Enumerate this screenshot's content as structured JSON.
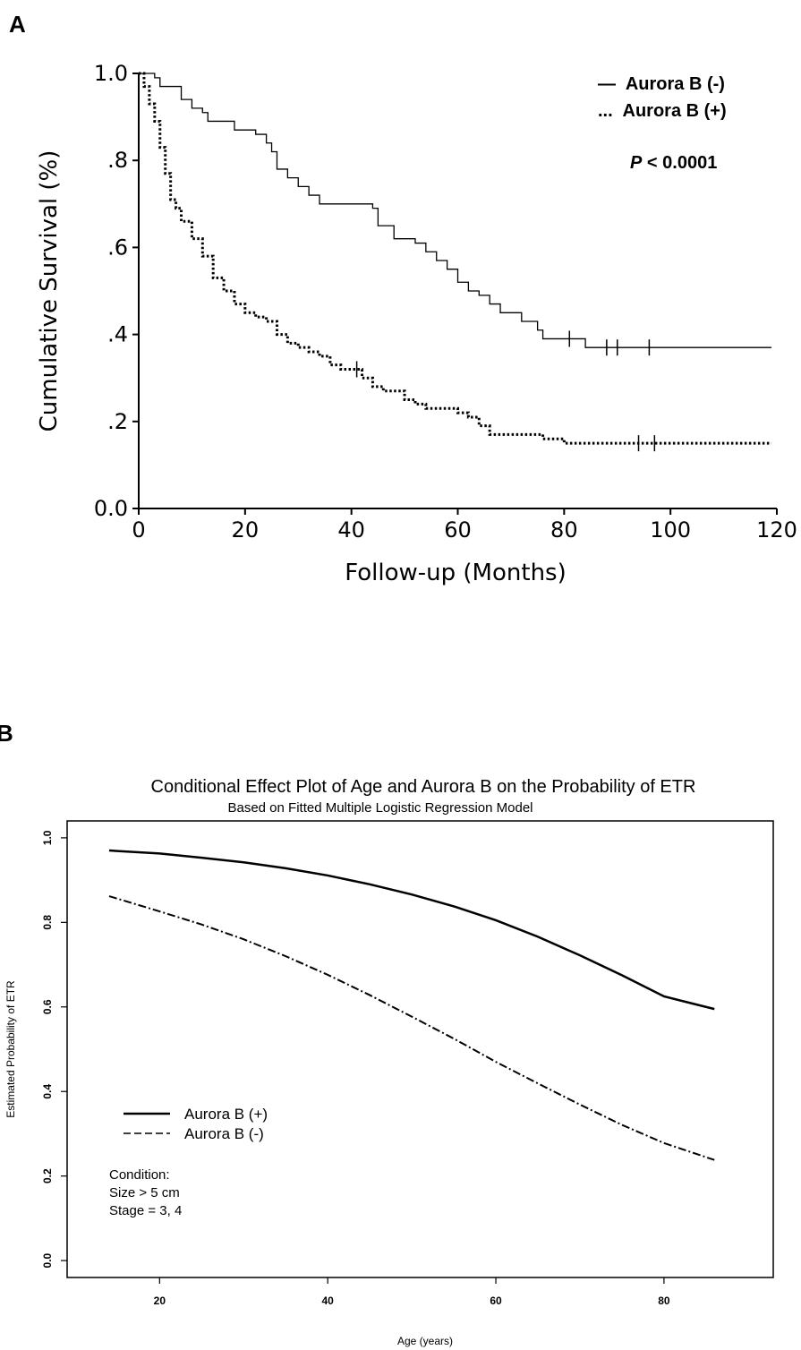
{
  "chart_data": [
    {
      "panel_label": "A",
      "type": "line",
      "subtype": "kaplan-meier",
      "xlabel": "Follow-up (Months)",
      "ylabel": "Cumulative Survival (%)",
      "xlim": [
        0,
        120
      ],
      "ylim": [
        0,
        1
      ],
      "x_ticks": [
        0,
        20,
        40,
        60,
        80,
        100,
        120
      ],
      "x_tick_labels": [
        "0",
        "20",
        "40",
        "60",
        "80",
        "100",
        "120"
      ],
      "y_ticks": [
        0,
        0.2,
        0.4,
        0.6,
        0.8,
        1.0
      ],
      "y_tick_labels": [
        "0.0",
        ".2",
        ".4",
        ".6",
        ".8",
        "1.0"
      ],
      "grid": false,
      "legend_position": "top-right",
      "annotation": {
        "p_symbol": "P",
        "p_rest": " < 0.0001"
      },
      "series": [
        {
          "name": "Aurora B (-)",
          "legend_symbol": "—",
          "style": "solid",
          "color": "#000000",
          "x": [
            0,
            3,
            4,
            8,
            10,
            12,
            13,
            18,
            22,
            24,
            25,
            26,
            28,
            30,
            32,
            34,
            44,
            45,
            48,
            52,
            54,
            56,
            58,
            60,
            62,
            64,
            66,
            68,
            72,
            75,
            76,
            84,
            119
          ],
          "y": [
            1.0,
            0.99,
            0.97,
            0.94,
            0.92,
            0.91,
            0.89,
            0.87,
            0.86,
            0.84,
            0.82,
            0.78,
            0.76,
            0.74,
            0.72,
            0.7,
            0.69,
            0.65,
            0.62,
            0.61,
            0.59,
            0.57,
            0.55,
            0.52,
            0.5,
            0.49,
            0.47,
            0.45,
            0.43,
            0.41,
            0.39,
            0.37,
            0.37
          ],
          "censored": [
            [
              81,
              0.39
            ],
            [
              88,
              0.37
            ],
            [
              90,
              0.37
            ],
            [
              96,
              0.37
            ]
          ]
        },
        {
          "name": "Aurora B (+)",
          "legend_symbol": "...",
          "style": "dotted",
          "color": "#000000",
          "x": [
            0,
            1,
            2,
            3,
            4,
            5,
            6,
            7,
            8,
            10,
            12,
            14,
            16,
            18,
            20,
            22,
            24,
            26,
            28,
            30,
            32,
            34,
            36,
            38,
            40,
            42,
            44,
            46,
            50,
            52,
            54,
            56,
            60,
            62,
            64,
            66,
            70,
            76,
            80,
            119
          ],
          "y": [
            1.0,
            0.97,
            0.93,
            0.89,
            0.83,
            0.77,
            0.71,
            0.69,
            0.66,
            0.62,
            0.58,
            0.53,
            0.5,
            0.47,
            0.45,
            0.44,
            0.43,
            0.4,
            0.38,
            0.37,
            0.36,
            0.35,
            0.33,
            0.32,
            0.32,
            0.3,
            0.28,
            0.27,
            0.25,
            0.24,
            0.23,
            0.23,
            0.22,
            0.21,
            0.19,
            0.17,
            0.17,
            0.16,
            0.15,
            0.15
          ],
          "censored": [
            [
              41,
              0.32
            ],
            [
              94,
              0.15
            ],
            [
              97,
              0.15
            ]
          ]
        }
      ]
    },
    {
      "panel_label": "B",
      "type": "line",
      "title": "Conditional Effect Plot of Age and Aurora B on the Probability of ETR",
      "subtitle": "Based on Fitted Multiple Logistic Regression Model",
      "xlabel": "Age (years)",
      "ylabel": "Estimated Probability of ETR",
      "xlim": [
        9,
        93
      ],
      "ylim": [
        -0.04,
        1.04
      ],
      "x_ticks": [
        20,
        40,
        60,
        80
      ],
      "x_tick_labels": [
        "20",
        "40",
        "60",
        "80"
      ],
      "y_ticks": [
        0,
        0.2,
        0.4,
        0.6,
        0.8,
        1.0
      ],
      "y_tick_labels": [
        "0.0",
        "0.2",
        "0.4",
        "0.6",
        "0.8",
        "1.0"
      ],
      "grid": false,
      "legend_position": "bottom-left",
      "condition": {
        "heading": "Condition:",
        "lines": [
          "Size > 5 cm",
          "Stage = 3, 4"
        ]
      },
      "series": [
        {
          "name": "Aurora B (+)",
          "legend_label": "Aurora B (+)",
          "style": "solid",
          "color": "#000000",
          "x": [
            14,
            20,
            25,
            30,
            35,
            40,
            45,
            50,
            55,
            60,
            65,
            70,
            75,
            80,
            86
          ],
          "y": [
            0.97,
            0.963,
            0.953,
            0.942,
            0.928,
            0.911,
            0.89,
            0.866,
            0.838,
            0.805,
            0.766,
            0.722,
            0.675,
            0.625,
            0.595
          ]
        },
        {
          "name": "Aurora B (-)",
          "legend_label": "Aurora B (-)",
          "style": "dashed",
          "color": "#000000",
          "x": [
            14,
            20,
            25,
            30,
            35,
            40,
            45,
            50,
            55,
            60,
            65,
            70,
            75,
            80,
            86
          ],
          "y": [
            0.862,
            0.826,
            0.795,
            0.76,
            0.72,
            0.676,
            0.628,
            0.577,
            0.525,
            0.47,
            0.419,
            0.369,
            0.321,
            0.278,
            0.238
          ]
        }
      ]
    }
  ]
}
